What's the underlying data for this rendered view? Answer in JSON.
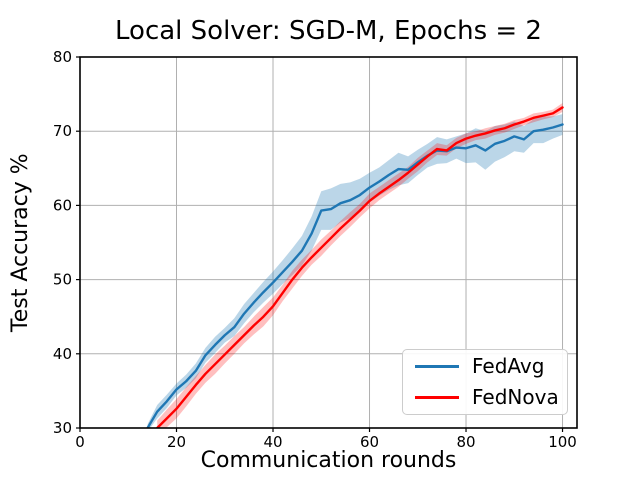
{
  "chart_data": {
    "type": "line",
    "title": "Local Solver: SGD-M, Epochs = 2",
    "xlabel": "Communication rounds",
    "ylabel": "Test Accuracy %",
    "xlim": [
      0,
      103
    ],
    "ylim": [
      30,
      80
    ],
    "xticks": [
      0,
      20,
      40,
      60,
      80,
      100
    ],
    "yticks": [
      30,
      40,
      50,
      60,
      70,
      80
    ],
    "grid": true,
    "grid_color": "#b0b0b0",
    "axis_color": "#000000",
    "background_color": "#ffffff",
    "legend_position": "lower right",
    "series": [
      {
        "name": "FedAvg",
        "color": "#1f77b4",
        "band_alpha": 0.3,
        "x": [
          14,
          16,
          18,
          20,
          22,
          24,
          26,
          28,
          30,
          32,
          34,
          36,
          38,
          40,
          42,
          44,
          46,
          48,
          50,
          52,
          54,
          56,
          58,
          60,
          62,
          64,
          66,
          68,
          70,
          72,
          74,
          76,
          78,
          80,
          82,
          84,
          86,
          88,
          90,
          92,
          94,
          96,
          98,
          100
        ],
        "y": [
          30.0,
          32.2,
          33.6,
          35.2,
          36.3,
          37.7,
          39.8,
          41.2,
          42.5,
          43.6,
          45.4,
          46.9,
          48.3,
          49.6,
          51.0,
          52.4,
          53.9,
          56.2,
          59.3,
          59.5,
          60.3,
          60.7,
          61.4,
          62.4,
          63.2,
          64.1,
          64.9,
          64.8,
          65.8,
          66.7,
          67.4,
          67.3,
          67.8,
          67.7,
          68.1,
          67.4,
          68.3,
          68.7,
          69.3,
          68.9,
          70.0,
          70.2,
          70.5,
          70.9
        ],
        "band": [
          0.5,
          0.9,
          0.9,
          0.8,
          0.9,
          1.0,
          1.0,
          1.1,
          1.0,
          1.2,
          1.3,
          1.3,
          1.4,
          1.5,
          1.6,
          1.8,
          2.0,
          2.3,
          2.6,
          2.8,
          2.6,
          2.4,
          2.2,
          2.0,
          1.9,
          2.0,
          2.2,
          1.8,
          1.7,
          1.6,
          1.8,
          1.6,
          1.5,
          2.0,
          2.3,
          2.6,
          2.4,
          2.2,
          2.0,
          1.8,
          1.6,
          1.8,
          1.5,
          1.4
        ]
      },
      {
        "name": "FedNova",
        "color": "#ff0000",
        "band_alpha": 0.25,
        "x": [
          16,
          18,
          20,
          22,
          24,
          26,
          28,
          30,
          32,
          34,
          36,
          38,
          40,
          42,
          44,
          46,
          48,
          50,
          52,
          54,
          56,
          58,
          60,
          62,
          64,
          66,
          68,
          70,
          72,
          74,
          76,
          78,
          80,
          82,
          84,
          86,
          88,
          90,
          92,
          94,
          96,
          98,
          100
        ],
        "y": [
          30.0,
          31.3,
          32.6,
          34.2,
          35.8,
          37.3,
          38.6,
          39.9,
          41.2,
          42.5,
          43.8,
          45.0,
          46.4,
          48.2,
          50.0,
          51.6,
          53.0,
          54.3,
          55.6,
          56.9,
          58.1,
          59.3,
          60.6,
          61.6,
          62.5,
          63.4,
          64.4,
          65.5,
          66.6,
          67.6,
          67.4,
          68.4,
          69.0,
          69.4,
          69.7,
          70.1,
          70.4,
          70.9,
          71.3,
          71.8,
          72.1,
          72.4,
          73.2
        ],
        "band": [
          1.0,
          1.2,
          1.3,
          1.3,
          1.2,
          1.2,
          1.3,
          1.2,
          1.2,
          1.1,
          1.2,
          1.3,
          1.2,
          1.1,
          1.2,
          1.1,
          1.0,
          1.1,
          1.0,
          1.0,
          1.0,
          0.9,
          1.0,
          0.9,
          0.9,
          0.9,
          0.8,
          0.9,
          0.8,
          0.8,
          0.7,
          0.7,
          0.7,
          0.6,
          0.7,
          0.6,
          0.6,
          0.6,
          0.5,
          0.6,
          0.5,
          0.5,
          0.6
        ]
      }
    ]
  }
}
